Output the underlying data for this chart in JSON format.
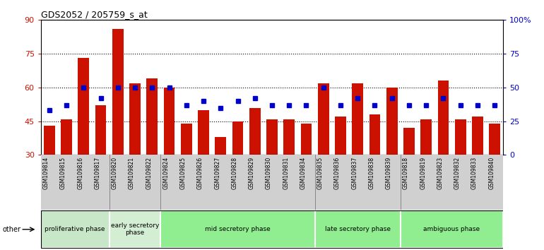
{
  "title": "GDS2052 / 205759_s_at",
  "samples": [
    "GSM109814",
    "GSM109815",
    "GSM109816",
    "GSM109817",
    "GSM109820",
    "GSM109821",
    "GSM109822",
    "GSM109824",
    "GSM109825",
    "GSM109826",
    "GSM109827",
    "GSM109828",
    "GSM109829",
    "GSM109830",
    "GSM109831",
    "GSM109834",
    "GSM109835",
    "GSM109836",
    "GSM109837",
    "GSM109838",
    "GSM109839",
    "GSM109818",
    "GSM109819",
    "GSM109823",
    "GSM109832",
    "GSM109833",
    "GSM109840"
  ],
  "counts": [
    43,
    46,
    73,
    52,
    86,
    62,
    64,
    60,
    44,
    50,
    38,
    45,
    51,
    46,
    46,
    44,
    62,
    47,
    62,
    48,
    60,
    42,
    46,
    63,
    46,
    47,
    44
  ],
  "percentiles_right": [
    33,
    37,
    50,
    42,
    50,
    50,
    50,
    50,
    37,
    40,
    35,
    40,
    42,
    37,
    37,
    37,
    50,
    37,
    42,
    37,
    42,
    37,
    37,
    42,
    37,
    37,
    37
  ],
  "phases": [
    {
      "label": "proliferative phase",
      "start": 0,
      "end": 4,
      "color": "#c8e6c8"
    },
    {
      "label": "early secretory\nphase",
      "start": 4,
      "end": 7,
      "color": "#d4eed4"
    },
    {
      "label": "mid secretory phase",
      "start": 7,
      "end": 16,
      "color": "#90ee90"
    },
    {
      "label": "late secretory phase",
      "start": 16,
      "end": 21,
      "color": "#90ee90"
    },
    {
      "label": "ambiguous phase",
      "start": 21,
      "end": 27,
      "color": "#90ee90"
    }
  ],
  "bar_color": "#cc1100",
  "dot_color": "#0000cc",
  "left_ylim": [
    30,
    90
  ],
  "left_yticks": [
    30,
    45,
    60,
    75,
    90
  ],
  "right_ylim": [
    0,
    100
  ],
  "right_yticks": [
    0,
    25,
    50,
    75,
    100
  ],
  "right_yticklabels": [
    "0",
    "25",
    "50",
    "75",
    "100%"
  ],
  "bg_color": "#d0d0d0",
  "phase_border_indices": [
    4,
    7,
    16,
    21
  ]
}
